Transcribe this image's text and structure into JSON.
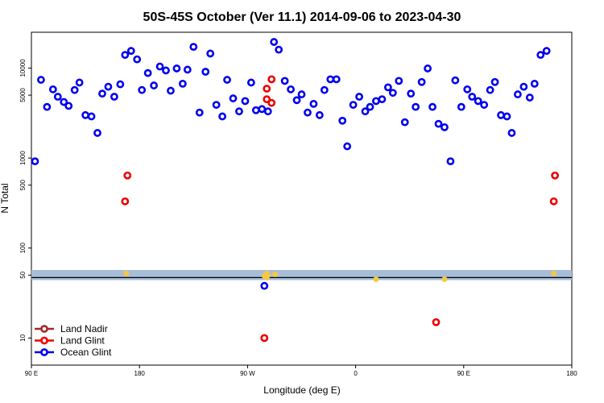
{
  "chart_data": {
    "type": "scatter",
    "title": "50S-45S October (Ver 11.1)   2014-09-06 to 2023-04-30",
    "xlabel": "Longitude (deg E)",
    "ylabel": "N Total",
    "y_scale": "log",
    "xlim": [
      90,
      540
    ],
    "ylim": [
      5,
      25000
    ],
    "grid": false,
    "legend_position": "bottom-left",
    "x_ticks": [
      {
        "value": 90,
        "label": "90 E"
      },
      {
        "value": 180,
        "label": "180"
      },
      {
        "value": 270,
        "label": "90 W"
      },
      {
        "value": 360,
        "label": "0"
      },
      {
        "value": 450,
        "label": "90 E"
      },
      {
        "value": 540,
        "label": "180"
      }
    ],
    "y_ticks": [
      {
        "value": 10,
        "label": "10"
      },
      {
        "value": 50,
        "label": "50"
      },
      {
        "value": 100,
        "label": "100"
      },
      {
        "value": 500,
        "label": "500"
      },
      {
        "value": 1000,
        "label": "1000"
      },
      {
        "value": 5000,
        "label": "5000"
      },
      {
        "value": 10000,
        "label": "10000"
      }
    ],
    "threshold_band": {
      "low": 44,
      "high": 57,
      "line": 47,
      "band_color": "#a6bdd8",
      "line_color": "#000000"
    },
    "yellow_markers": [
      {
        "x": 169,
        "y": 52
      },
      {
        "x": 286,
        "y": 52
      },
      {
        "x": 286,
        "y": 47
      },
      {
        "x": 287,
        "y": 50
      },
      {
        "x": 284,
        "y": 49
      },
      {
        "x": 293,
        "y": 51
      },
      {
        "x": 377,
        "y": 45
      },
      {
        "x": 434,
        "y": 45
      },
      {
        "x": 525,
        "y": 52
      }
    ],
    "series": [
      {
        "name": "Land Nadir",
        "color": "#a52a2a",
        "points": []
      },
      {
        "name": "Land Glint",
        "color": "#ee0000",
        "points": [
          {
            "x": 168,
            "y": 330
          },
          {
            "x": 170,
            "y": 640
          },
          {
            "x": 286,
            "y": 5900
          },
          {
            "x": 290,
            "y": 7500
          },
          {
            "x": 286,
            "y": 4500
          },
          {
            "x": 290,
            "y": 4100
          },
          {
            "x": 284,
            "y": 10
          },
          {
            "x": 427,
            "y": 15
          },
          {
            "x": 525,
            "y": 330
          },
          {
            "x": 526,
            "y": 640
          }
        ]
      },
      {
        "name": "Ocean Glint",
        "color": "#0000ee",
        "points": [
          {
            "x": 93,
            "y": 920
          },
          {
            "x": 98,
            "y": 7400
          },
          {
            "x": 103,
            "y": 3700
          },
          {
            "x": 108,
            "y": 5800
          },
          {
            "x": 112,
            "y": 4800
          },
          {
            "x": 117,
            "y": 4200
          },
          {
            "x": 121,
            "y": 3800
          },
          {
            "x": 126,
            "y": 5700
          },
          {
            "x": 130,
            "y": 6900
          },
          {
            "x": 135,
            "y": 3000
          },
          {
            "x": 140,
            "y": 2900
          },
          {
            "x": 145,
            "y": 1900
          },
          {
            "x": 149,
            "y": 5200
          },
          {
            "x": 154,
            "y": 6200
          },
          {
            "x": 159,
            "y": 4800
          },
          {
            "x": 164,
            "y": 6600
          },
          {
            "x": 168,
            "y": 14000
          },
          {
            "x": 173,
            "y": 15500
          },
          {
            "x": 178,
            "y": 12500
          },
          {
            "x": 182,
            "y": 5700
          },
          {
            "x": 187,
            "y": 8800
          },
          {
            "x": 192,
            "y": 6400
          },
          {
            "x": 197,
            "y": 10400
          },
          {
            "x": 202,
            "y": 9400
          },
          {
            "x": 206,
            "y": 5600
          },
          {
            "x": 211,
            "y": 9900
          },
          {
            "x": 216,
            "y": 6700
          },
          {
            "x": 220,
            "y": 9600
          },
          {
            "x": 225,
            "y": 17200
          },
          {
            "x": 230,
            "y": 3200
          },
          {
            "x": 235,
            "y": 9100
          },
          {
            "x": 239,
            "y": 14500
          },
          {
            "x": 244,
            "y": 3900
          },
          {
            "x": 249,
            "y": 2900
          },
          {
            "x": 253,
            "y": 7400
          },
          {
            "x": 258,
            "y": 4600
          },
          {
            "x": 263,
            "y": 3300
          },
          {
            "x": 268,
            "y": 4300
          },
          {
            "x": 273,
            "y": 6900
          },
          {
            "x": 277,
            "y": 3400
          },
          {
            "x": 282,
            "y": 3500
          },
          {
            "x": 287,
            "y": 3300
          },
          {
            "x": 292,
            "y": 19500
          },
          {
            "x": 296,
            "y": 16000
          },
          {
            "x": 301,
            "y": 7200
          },
          {
            "x": 306,
            "y": 5800
          },
          {
            "x": 311,
            "y": 4400
          },
          {
            "x": 315,
            "y": 5100
          },
          {
            "x": 320,
            "y": 3200
          },
          {
            "x": 325,
            "y": 4000
          },
          {
            "x": 330,
            "y": 3000
          },
          {
            "x": 334,
            "y": 5700
          },
          {
            "x": 339,
            "y": 7500
          },
          {
            "x": 344,
            "y": 7500
          },
          {
            "x": 349,
            "y": 2600
          },
          {
            "x": 353,
            "y": 1350
          },
          {
            "x": 358,
            "y": 3900
          },
          {
            "x": 363,
            "y": 4800
          },
          {
            "x": 368,
            "y": 3300
          },
          {
            "x": 372,
            "y": 3700
          },
          {
            "x": 377,
            "y": 4300
          },
          {
            "x": 382,
            "y": 4500
          },
          {
            "x": 387,
            "y": 6100
          },
          {
            "x": 391,
            "y": 5300
          },
          {
            "x": 396,
            "y": 7200
          },
          {
            "x": 401,
            "y": 2500
          },
          {
            "x": 406,
            "y": 5200
          },
          {
            "x": 410,
            "y": 3700
          },
          {
            "x": 415,
            "y": 7000
          },
          {
            "x": 420,
            "y": 9900
          },
          {
            "x": 424,
            "y": 3700
          },
          {
            "x": 429,
            "y": 2400
          },
          {
            "x": 434,
            "y": 2200
          },
          {
            "x": 439,
            "y": 920
          },
          {
            "x": 443,
            "y": 7300
          },
          {
            "x": 448,
            "y": 3700
          },
          {
            "x": 453,
            "y": 5800
          },
          {
            "x": 457,
            "y": 4800
          },
          {
            "x": 462,
            "y": 4300
          },
          {
            "x": 467,
            "y": 3900
          },
          {
            "x": 472,
            "y": 5700
          },
          {
            "x": 476,
            "y": 7000
          },
          {
            "x": 481,
            "y": 3000
          },
          {
            "x": 486,
            "y": 2900
          },
          {
            "x": 490,
            "y": 1900
          },
          {
            "x": 495,
            "y": 5100
          },
          {
            "x": 500,
            "y": 6200
          },
          {
            "x": 505,
            "y": 4700
          },
          {
            "x": 509,
            "y": 6700
          },
          {
            "x": 514,
            "y": 14000
          },
          {
            "x": 519,
            "y": 15500
          },
          {
            "x": 284,
            "y": 38
          }
        ]
      }
    ]
  }
}
